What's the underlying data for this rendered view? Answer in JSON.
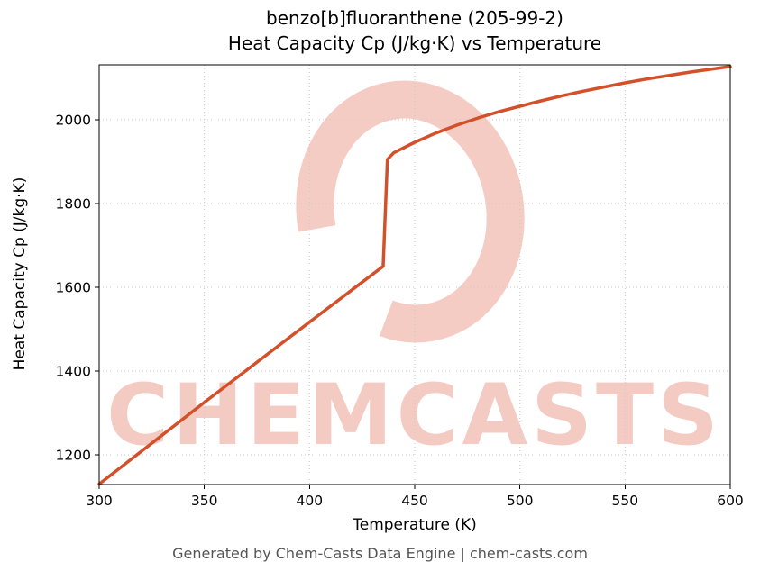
{
  "title": {
    "line1": "benzo[b]fluoranthene (205-99-2)",
    "line2": "Heat Capacity Cp (J/kg·K) vs Temperature"
  },
  "footer": {
    "text": "Generated by Chem-Casts Data Engine | chem-casts.com"
  },
  "watermark": {
    "text": "CHEMCASTS",
    "color": "#d9472b",
    "opacity": 0.28
  },
  "chart_data": {
    "type": "line",
    "title_lines": [
      "benzo[b]fluoranthene (205-99-2)",
      "Heat Capacity Cp (J/kg·K) vs Temperature"
    ],
    "xlabel": "Temperature (K)",
    "ylabel": "Heat Capacity Cp (J/kg·K)",
    "xlim": [
      300,
      600
    ],
    "ylim": [
      1129,
      2131
    ],
    "xticks": [
      300,
      350,
      400,
      450,
      500,
      550,
      600
    ],
    "yticks": [
      1200,
      1400,
      1600,
      1800,
      2000
    ],
    "grid": true,
    "grid_style": "dotted",
    "grid_color": "#c9c9c9",
    "line_color": "#d2512a",
    "line_width": 3.5,
    "series": [
      {
        "name": "Heat Capacity Cp",
        "x": [
          300,
          350,
          400,
          420,
          435,
          437,
          440,
          450,
          460,
          470,
          480,
          490,
          500,
          510,
          520,
          530,
          540,
          550,
          560,
          570,
          580,
          590,
          600
        ],
        "y": [
          1130,
          1325,
          1517,
          1593,
          1650,
          1905,
          1921,
          1946,
          1968,
          1987,
          2004,
          2019,
          2032,
          2045,
          2057,
          2068,
          2078,
          2088,
          2097,
          2105,
          2113,
          2120,
          2127
        ]
      }
    ]
  }
}
